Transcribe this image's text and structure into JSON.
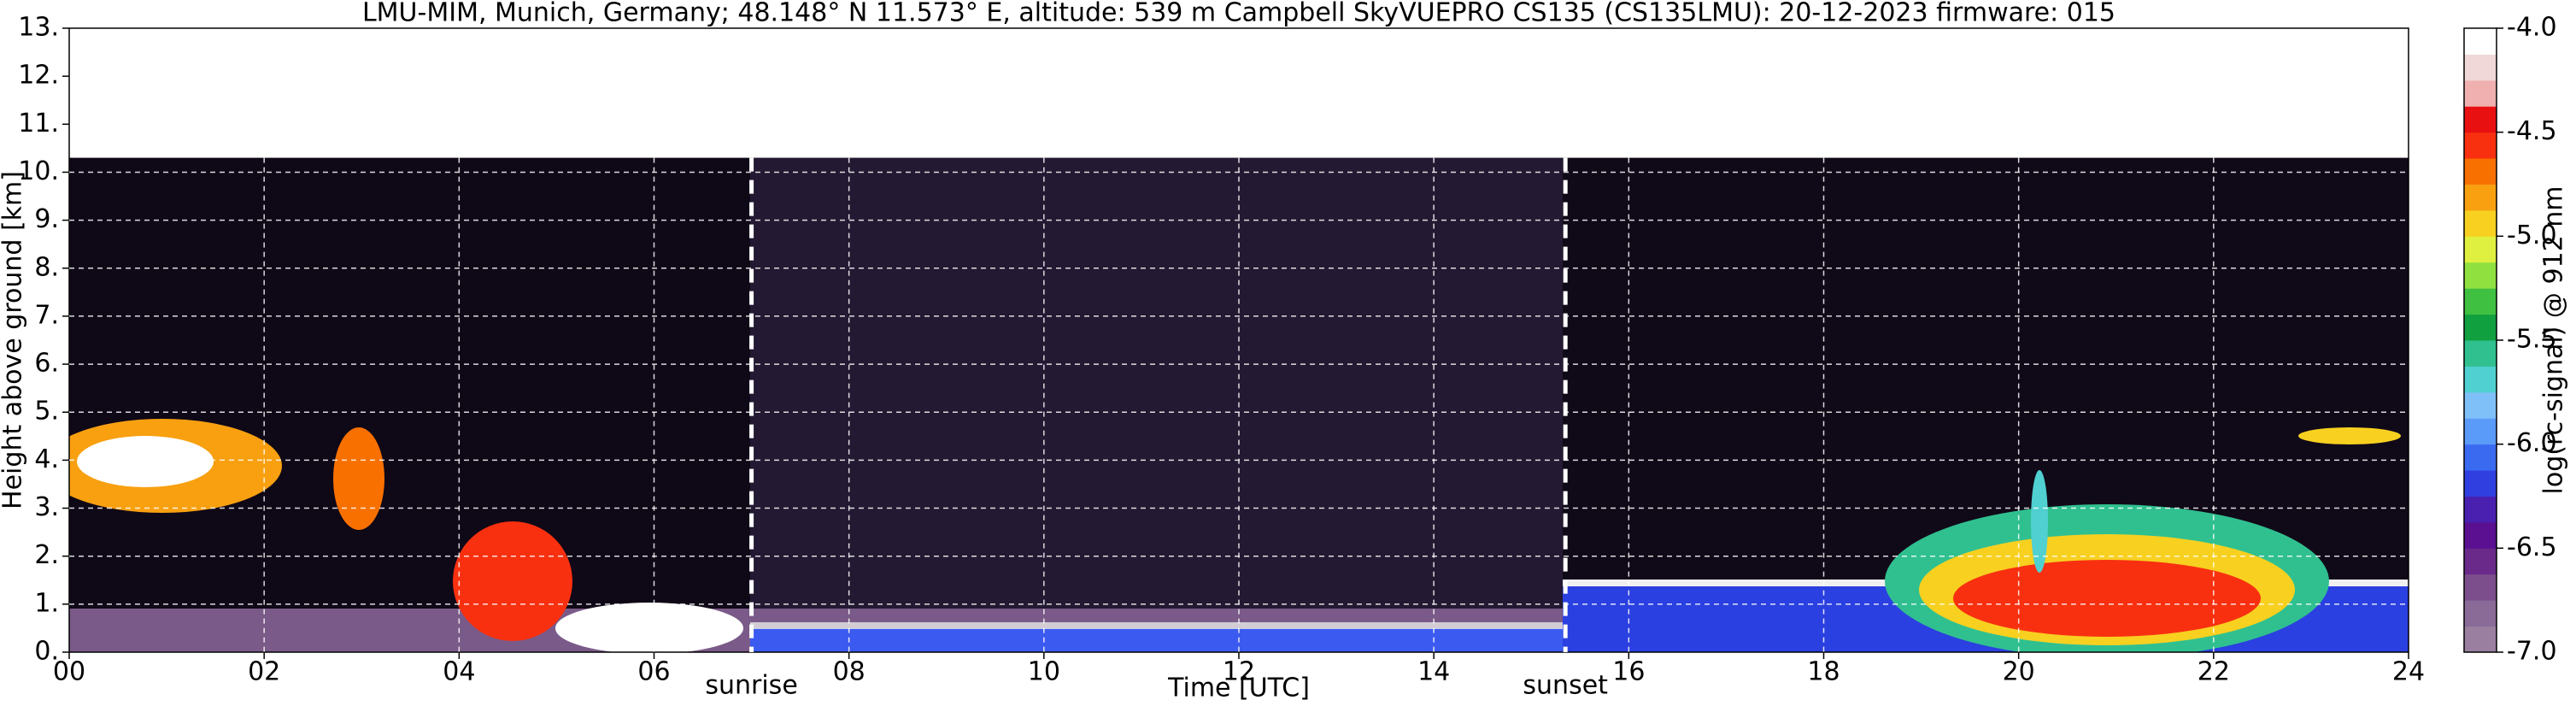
{
  "chart_data": {
    "type": "heatmap",
    "title": "LMU-MIM, Munich, Germany; 48.148° N 11.573° E, altitude: 539 m    Campbell SkyVUEPRO CS135 (CS135LMU): 20-12-2023    firmware: 015",
    "x_label": "Time [UTC]",
    "y_label": "Height above ground [km]",
    "colorbar_label": "log(rc-signal) @ 912 nm",
    "xlim": [
      0,
      24
    ],
    "xticks": [
      {
        "value": 0,
        "label": "00"
      },
      {
        "value": 2,
        "label": "02"
      },
      {
        "value": 4,
        "label": "04"
      },
      {
        "value": 6,
        "label": "06"
      },
      {
        "value": 8,
        "label": "08"
      },
      {
        "value": 10,
        "label": "10"
      },
      {
        "value": 12,
        "label": "12"
      },
      {
        "value": 14,
        "label": "14"
      },
      {
        "value": 16,
        "label": "16"
      },
      {
        "value": 18,
        "label": "18"
      },
      {
        "value": 20,
        "label": "20"
      },
      {
        "value": 22,
        "label": "22"
      },
      {
        "value": 24,
        "label": "24"
      }
    ],
    "ylim": [
      0,
      13
    ],
    "yticks": [
      {
        "value": 0,
        "label": "0."
      },
      {
        "value": 1,
        "label": "1."
      },
      {
        "value": 2,
        "label": "2."
      },
      {
        "value": 3,
        "label": "3."
      },
      {
        "value": 4,
        "label": "4."
      },
      {
        "value": 5,
        "label": "5."
      },
      {
        "value": 6,
        "label": "6."
      },
      {
        "value": 7,
        "label": "7."
      },
      {
        "value": 8,
        "label": "8."
      },
      {
        "value": 9,
        "label": "9."
      },
      {
        "value": 10,
        "label": "10."
      },
      {
        "value": 11,
        "label": "11."
      },
      {
        "value": 12,
        "label": "12."
      },
      {
        "value": 13,
        "label": "13."
      }
    ],
    "signal_top": 10.3,
    "grid": true,
    "colorbar_lim": [
      -7,
      -4
    ],
    "colorbar_ticks": [
      {
        "value": -4,
        "label": "-4.0"
      },
      -4.5,
      {
        "value": -5,
        "label": "-5.0"
      },
      -5.5,
      {
        "value": -6,
        "label": "-6.0"
      },
      -6.5,
      {
        "value": -7,
        "label": "-7.0"
      }
    ],
    "colormap": [
      "#9a7fa0",
      "#8a6a96",
      "#7c4f8c",
      "#6a2a8a",
      "#5a1090",
      "#4a20b0",
      "#3040e0",
      "#3a6af0",
      "#5a9af8",
      "#80c0f8",
      "#50d0d0",
      "#30c090",
      "#10a040",
      "#40c040",
      "#90e040",
      "#e0f040",
      "#f8d020",
      "#f8a010",
      "#f87000",
      "#f83010",
      "#e81010",
      "#f0b0b0",
      "#f0d8d8",
      "#ffffff"
    ],
    "annotations": [
      {
        "label": "sunrise",
        "x": 7.0
      },
      {
        "label": "sunset",
        "x": 15.35
      }
    ]
  }
}
